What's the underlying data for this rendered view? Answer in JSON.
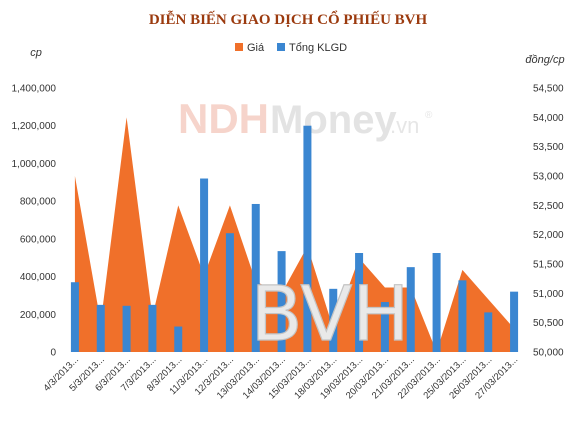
{
  "chart_data": {
    "type": "combo",
    "title": "DIỄN BIẾN GIAO DỊCH CỔ PHIẾU BVH",
    "left_unit": "cp",
    "right_unit": "đồng/cp",
    "legend_position": "top",
    "categories": [
      "4/3/2013...",
      "5/3/2013...",
      "6/3/2013...",
      "7/3/2013...",
      "8/3/2013...",
      "11/3/2013...",
      "12/3/2013...",
      "13/03/2013...",
      "14/03/2013...",
      "15/03/2013...",
      "18/03/2013...",
      "19/03/2013...",
      "20/03/2013...",
      "21/03/2013...",
      "22/03/2013...",
      "25/03/2013...",
      "26/03/2013...",
      "27/03/2013..."
    ],
    "series": [
      {
        "name": "Giá",
        "kind": "area",
        "axis": "right",
        "color": "#f0702a",
        "values": [
          53000,
          50500,
          54000,
          50600,
          52500,
          51300,
          52500,
          51200,
          51000,
          51800,
          50400,
          51600,
          51100,
          51100,
          50000,
          51400,
          50900,
          50400
        ]
      },
      {
        "name": "Tổng KLGD",
        "kind": "bar",
        "axis": "left",
        "color": "#3a86d1",
        "values": [
          370000,
          250000,
          245000,
          250000,
          135000,
          920000,
          630000,
          785000,
          535000,
          1200000,
          335000,
          525000,
          265000,
          450000,
          525000,
          380000,
          210000,
          320000
        ]
      }
    ],
    "y_left": {
      "min": 0,
      "max": 1400000,
      "step": 200000,
      "ticks": [
        "0",
        "200,000",
        "400,000",
        "600,000",
        "800,000",
        "1,000,000",
        "1,200,000",
        "1,400,000"
      ]
    },
    "y_right": {
      "min": 50000,
      "max": 54500,
      "step": 500,
      "ticks": [
        "50,000",
        "50,500",
        "51,000",
        "51,500",
        "52,000",
        "52,500",
        "53,000",
        "53,500",
        "54,000",
        "54,500"
      ]
    },
    "grid": false
  },
  "watermark": {
    "brand_left": "NDH",
    "brand_mid": "Money",
    "brand_right": ".vn",
    "reg": "®",
    "ticker": "BVH"
  }
}
